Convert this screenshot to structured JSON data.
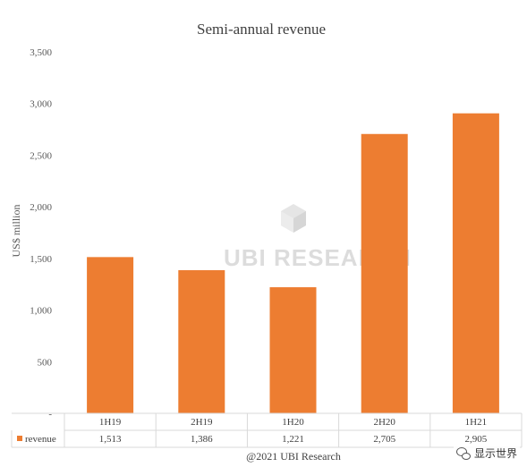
{
  "chart_data": {
    "type": "bar",
    "title": "Semi-annual revenue",
    "ylabel": "US$ million",
    "xlabel": "",
    "categories": [
      "1H19",
      "2H19",
      "1H20",
      "2H20",
      "1H21"
    ],
    "series": [
      {
        "name": "revenue",
        "values": [
          1513,
          1386,
          1221,
          2705,
          2905
        ],
        "labels": [
          "1,513",
          "1,386",
          "1,221",
          "2,705",
          "2,905"
        ],
        "color": "#ED7D31"
      }
    ],
    "ylim": [
      0,
      3500
    ],
    "yticks": [
      "-",
      "500",
      "1,000",
      "1,500",
      "2,000",
      "2,500",
      "3,000",
      "3,500"
    ],
    "grid": false,
    "legend": "data-table"
  },
  "footer": {
    "credit": "@2021 UBI Research"
  },
  "watermark": {
    "logo_text": "UBI RESEARCH",
    "wechat_text": "显示世界",
    "wechat_icon": "wechat-icon"
  }
}
